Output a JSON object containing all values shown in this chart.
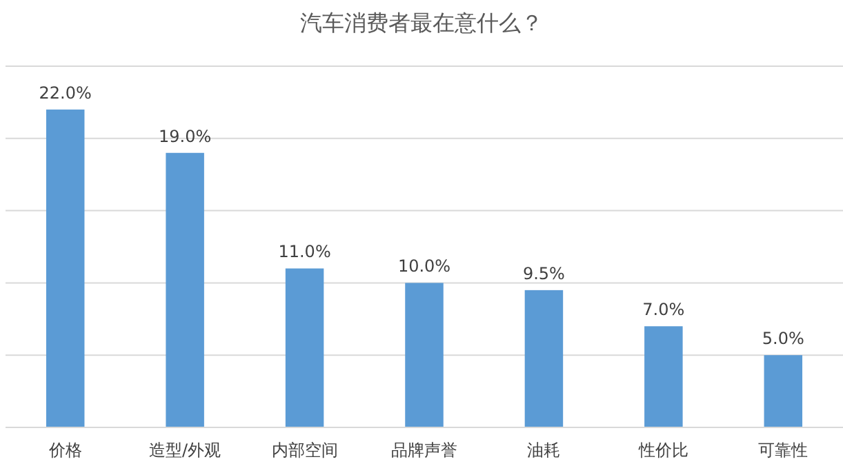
{
  "chart_data": {
    "type": "bar",
    "title": "汽车消费者最在意什么？",
    "categories": [
      "价格",
      "造型/外观",
      "内部空间",
      "品牌声誉",
      "油耗",
      "性价比",
      "可靠性"
    ],
    "values": [
      22.0,
      19.0,
      11.0,
      10.0,
      9.5,
      7.0,
      5.0
    ],
    "value_labels": [
      "22.0%",
      "19.0%",
      "11.0%",
      "10.0%",
      "9.5%",
      "7.0%",
      "5.0%"
    ],
    "color": "#5b9bd5",
    "ylim": [
      0,
      25
    ],
    "yticks": [
      {
        "value": 0,
        "label": null
      },
      {
        "value": 5,
        "label": null
      },
      {
        "value": 10,
        "label": null
      },
      {
        "value": 15,
        "label": null
      },
      {
        "value": 20,
        "label": null
      },
      {
        "value": 25,
        "label": null
      }
    ],
    "grid": "y",
    "tick_labels": "x"
  }
}
